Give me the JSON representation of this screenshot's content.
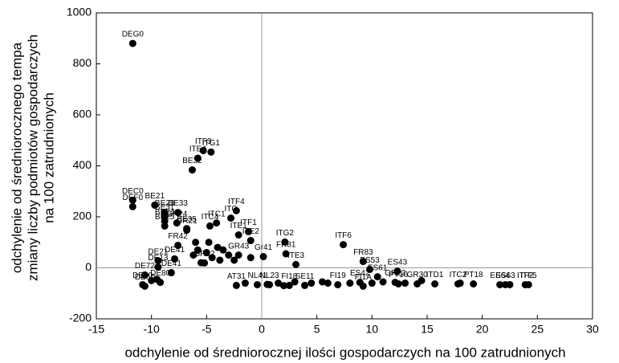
{
  "chart_data": {
    "type": "scatter",
    "x_label": "odchylenie od średniorocznej ilości gospodarczych na 100 zatrudnionych",
    "y_label": [
      "odchylenie od średniorocznego tempa",
      "zmiany liczby podmiotów gospodarczych",
      "na 100 zatrudnionych"
    ],
    "color": "#000000",
    "xlim": [
      -15,
      30
    ],
    "xticks": [
      -15,
      -10,
      -5,
      0,
      5,
      10,
      15,
      20,
      25,
      30
    ],
    "ylim": [
      -200,
      1000
    ],
    "yticks": [
      -200,
      0,
      200,
      400,
      600,
      800,
      1000
    ],
    "zero_lines": true,
    "x": [
      -11.7,
      -5.3,
      -4.6,
      -5.8,
      -6.3,
      -11.7,
      -11.7,
      -9.7,
      -8.8,
      -7.6,
      -8.8,
      -8.8,
      -8.8,
      -7.7,
      -2.3,
      -2.8,
      -6.8,
      -6.8,
      -4.7,
      -2.1,
      -1.2,
      -4.1,
      -1.0,
      2.1,
      2.2,
      0.15,
      3.1,
      7.4,
      9.2,
      9.8,
      10.5,
      12.3,
      8.9,
      12.1,
      12.4,
      14.1,
      15.7,
      17.8,
      19.2,
      22.1,
      21.6,
      23.9,
      24.2,
      -7.6,
      -7.9,
      -9.4,
      -9.4,
      -8.2,
      -10.6,
      -10.8,
      -10.6,
      -9.2,
      -5.2,
      -2.1,
      -2.3,
      -0.4,
      0.7,
      2.5,
      3.9,
      6.9,
      9.2,
      -5.0,
      -4.5,
      -3.8,
      -3.0,
      -4.0,
      -6.0,
      -5.5,
      -2.5,
      -1.0,
      0.5,
      1.5,
      2.0,
      3.0,
      4.5,
      5.5,
      6.0,
      8.0,
      10.0,
      11.0,
      13.0,
      14.5,
      18.0,
      22.5,
      -10.0,
      -9.5,
      -1.5,
      -3.5,
      -4.8,
      -6.2,
      -5.8
    ],
    "values": [
      880,
      460,
      454,
      430,
      384,
      265,
      240,
      246,
      217,
      217,
      202,
      183,
      164,
      176,
      224,
      195,
      154,
      148,
      164,
      129,
      142,
      176,
      107,
      101,
      55,
      44,
      13,
      91,
      25,
      -6,
      -35,
      -13,
      -57,
      -57,
      -63,
      -63,
      -63,
      -63,
      -63,
      -66,
      -66,
      -66,
      -66,
      88,
      35,
      28,
      3,
      -19,
      -28,
      -66,
      -72,
      -57,
      19,
      50,
      -69,
      -66,
      -66,
      -69,
      -69,
      -66,
      -72,
      60,
      40,
      30,
      50,
      80,
      100,
      20,
      30,
      40,
      -65,
      -60,
      -70,
      -55,
      -60,
      -55,
      -60,
      -60,
      -60,
      -55,
      -60,
      -50,
      -60,
      -66,
      -50,
      -45,
      -60,
      70,
      100,
      50,
      70
    ],
    "point_labels": [
      "DEG0",
      "ITF3",
      "ITG1",
      "ITE4",
      "BE32",
      "DEC0",
      "DEF0",
      "BE21",
      "BE23",
      "BE33",
      "BE31",
      "BE24",
      "BE25",
      "GR24",
      "ITF4",
      "ITC",
      "BE35",
      "GR21",
      "ITC4",
      "ITE1",
      "ITF1",
      "ITC1",
      "ITE2",
      "ITG2",
      "FR81",
      "Gr41",
      "ITE3",
      "ITF6",
      "FR83",
      "ES53",
      "ES61",
      "ES43",
      "ES42",
      "GR22",
      "PT16",
      "GR30",
      "ITD1",
      "ITC2",
      "PT18",
      "ES63",
      "ES64",
      "ITF2",
      "ITF5",
      "FR42",
      "DE41",
      "DE21",
      "DE13",
      "DE41",
      "DE72",
      "DE30",
      "DE60",
      "DE80",
      "GR12",
      "GR43",
      "AT31",
      "NL41",
      "NL23",
      "FI18",
      "SE11",
      "FI19",
      "FI1A",
      null,
      null,
      null,
      null,
      null,
      null,
      null,
      null,
      null,
      null,
      null,
      null,
      null,
      null,
      null,
      null,
      null,
      null,
      null,
      null,
      null,
      null,
      null,
      null,
      null,
      null,
      null,
      null,
      null,
      null
    ]
  }
}
